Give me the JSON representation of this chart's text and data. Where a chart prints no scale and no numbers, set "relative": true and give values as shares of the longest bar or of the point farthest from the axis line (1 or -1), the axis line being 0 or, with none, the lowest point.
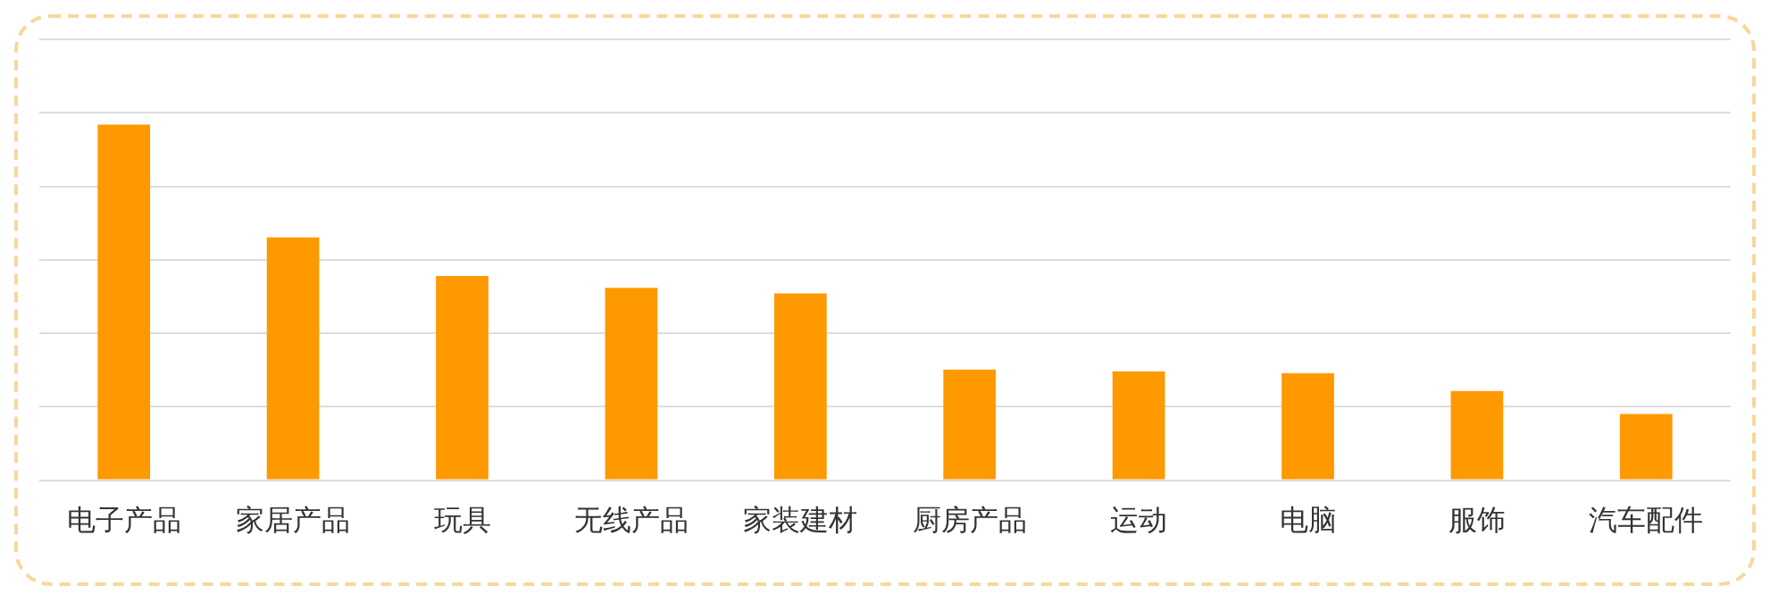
{
  "chart_data": {
    "type": "bar",
    "relative": true,
    "categories": [
      "电子产品",
      "家居产品",
      "玩具",
      "无线产品",
      "家装建材",
      "厨房产品",
      "运动",
      "电脑",
      "服饰",
      "汽车配件"
    ],
    "values": [
      1,
      0.683,
      0.574,
      0.541,
      0.525,
      0.311,
      0.306,
      0.301,
      0.251,
      0.186
    ],
    "color": "#ff9900",
    "grid": "y"
  }
}
